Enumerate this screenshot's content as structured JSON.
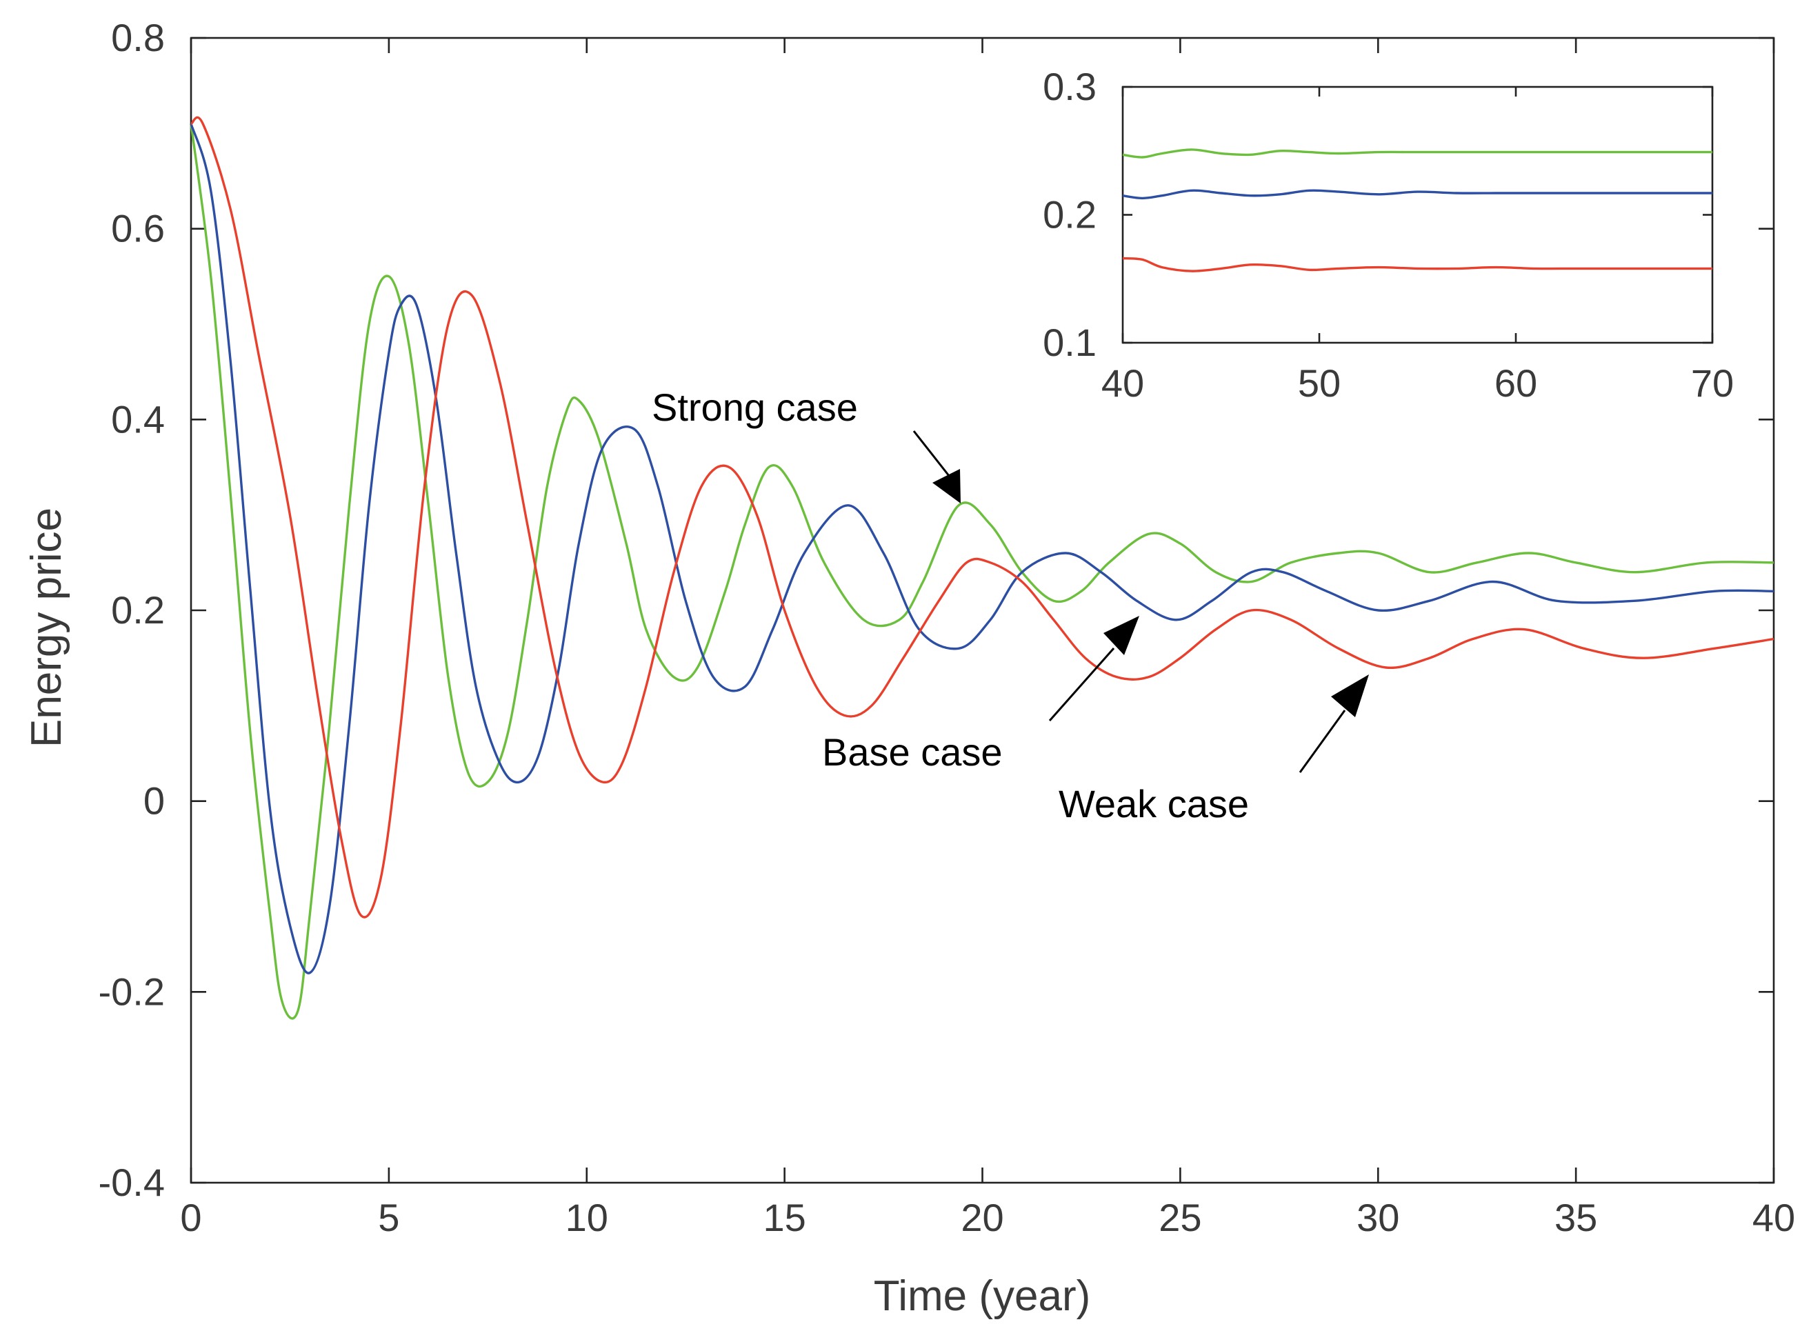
{
  "chart_data": [
    {
      "type": "line",
      "title": "",
      "xlabel": "Time (year)",
      "ylabel": "Energy price",
      "xlim": [
        0,
        40
      ],
      "ylim": [
        -0.4,
        0.8
      ],
      "xticks": [
        0,
        5,
        10,
        15,
        20,
        25,
        30,
        35,
        40
      ],
      "yticks": [
        -0.4,
        -0.2,
        0,
        0.2,
        0.4,
        0.6,
        0.8
      ],
      "xtick_labels": [
        "0",
        "5",
        "10",
        "15",
        "20",
        "25",
        "30",
        "35",
        "40"
      ],
      "ytick_labels": [
        "-0.4",
        "-0.2",
        "0",
        "0.2",
        "0.4",
        "0.6",
        "0.8"
      ],
      "grid": false,
      "series": [
        {
          "name": "Strong case",
          "color": "#6cbf3c",
          "x": [
            0,
            0.5,
            1,
            1.5,
            2,
            2.3,
            2.7,
            3.0,
            3.5,
            4,
            4.5,
            5.0,
            5.5,
            6,
            6.5,
            7.0,
            7.5,
            8,
            8.5,
            9,
            9.5,
            9.8,
            10.3,
            11,
            11.5,
            12.2,
            12.8,
            13.5,
            14,
            14.6,
            15.2,
            16,
            17,
            17.9,
            18.5,
            19.4,
            20.2,
            21,
            21.8,
            22.5,
            23.2,
            24.2,
            25,
            25.9,
            26.8,
            27.8,
            29,
            30,
            31.3,
            32.5,
            33.8,
            35,
            36.5,
            38.3,
            40
          ],
          "values": [
            0.71,
            0.55,
            0.32,
            0.07,
            -0.12,
            -0.21,
            -0.22,
            -0.12,
            0.08,
            0.31,
            0.5,
            0.55,
            0.48,
            0.31,
            0.13,
            0.03,
            0.02,
            0.07,
            0.19,
            0.33,
            0.41,
            0.42,
            0.38,
            0.27,
            0.18,
            0.13,
            0.14,
            0.22,
            0.29,
            0.35,
            0.33,
            0.25,
            0.19,
            0.19,
            0.23,
            0.31,
            0.29,
            0.24,
            0.21,
            0.22,
            0.25,
            0.28,
            0.27,
            0.24,
            0.23,
            0.25,
            0.26,
            0.26,
            0.24,
            0.25,
            0.26,
            0.25,
            0.24,
            0.25,
            0.25
          ]
        },
        {
          "name": "Base case",
          "color": "#2c4ea3",
          "x": [
            0,
            0.5,
            1,
            1.5,
            2,
            2.5,
            3.0,
            3.5,
            4,
            4.5,
            5.0,
            5.3,
            5.7,
            6.2,
            6.7,
            7.2,
            7.8,
            8.3,
            8.8,
            9.3,
            9.8,
            10.4,
            11.2,
            11.8,
            12.5,
            13.2,
            14,
            14.7,
            15.5,
            16.6,
            17.5,
            18.4,
            19.4,
            20.2,
            21.0,
            22.1,
            23.0,
            23.9,
            24.9,
            25.8,
            26.8,
            27.6,
            28.7,
            30.0,
            31.3,
            32.9,
            34.5,
            36.5,
            38.5,
            40
          ],
          "values": [
            0.71,
            0.64,
            0.46,
            0.22,
            -0.01,
            -0.13,
            -0.18,
            -0.11,
            0.08,
            0.31,
            0.47,
            0.52,
            0.52,
            0.42,
            0.26,
            0.12,
            0.04,
            0.02,
            0.05,
            0.14,
            0.27,
            0.37,
            0.39,
            0.33,
            0.21,
            0.13,
            0.12,
            0.18,
            0.26,
            0.31,
            0.26,
            0.18,
            0.16,
            0.19,
            0.24,
            0.26,
            0.24,
            0.21,
            0.19,
            0.21,
            0.24,
            0.24,
            0.22,
            0.2,
            0.21,
            0.23,
            0.21,
            0.21,
            0.22,
            0.22
          ]
        },
        {
          "name": "Weak case",
          "color": "#e8402c",
          "x": [
            0,
            0.3,
            1,
            1.7,
            2.5,
            3.2,
            3.8,
            4.3,
            4.8,
            5.3,
            5.9,
            6.5,
            7.1,
            7.8,
            8.5,
            9.2,
            9.8,
            10.4,
            10.9,
            11.5,
            12.2,
            12.9,
            13.6,
            14.3,
            15.0,
            15.8,
            16.5,
            17.2,
            18.0,
            18.9,
            19.6,
            20.2,
            21.0,
            21.8,
            22.6,
            23.4,
            24.2,
            25.0,
            25.9,
            26.8,
            27.8,
            29.0,
            30.2,
            31.3,
            32.4,
            33.7,
            35.2,
            36.7,
            38.5,
            40
          ],
          "values": [
            0.71,
            0.71,
            0.62,
            0.47,
            0.3,
            0.11,
            -0.04,
            -0.12,
            -0.08,
            0.08,
            0.33,
            0.5,
            0.53,
            0.44,
            0.29,
            0.14,
            0.05,
            0.02,
            0.04,
            0.12,
            0.24,
            0.33,
            0.35,
            0.3,
            0.2,
            0.12,
            0.09,
            0.1,
            0.15,
            0.21,
            0.25,
            0.25,
            0.23,
            0.19,
            0.15,
            0.13,
            0.13,
            0.15,
            0.18,
            0.2,
            0.19,
            0.16,
            0.14,
            0.15,
            0.17,
            0.18,
            0.16,
            0.15,
            0.16,
            0.17
          ]
        }
      ],
      "annotations": [
        {
          "text": "Strong case",
          "series": "Strong case",
          "point_x": 19.5,
          "point_y": 0.3
        },
        {
          "text": "Base case",
          "series": "Base case",
          "point_x": 24.3,
          "point_y": 0.2
        },
        {
          "text": "Weak case",
          "series": "Weak case",
          "point_x": 30.1,
          "point_y": 0.15
        }
      ]
    },
    {
      "type": "line",
      "title": "",
      "xlabel": "",
      "ylabel": "",
      "xlim": [
        40,
        70
      ],
      "ylim": [
        0.1,
        0.3
      ],
      "xticks": [
        40,
        50,
        60,
        70
      ],
      "yticks": [
        0.1,
        0.2,
        0.3
      ],
      "xtick_labels": [
        "40",
        "50",
        "60",
        "70"
      ],
      "ytick_labels": [
        "0.1",
        "0.2",
        "0.3"
      ],
      "grid": false,
      "series": [
        {
          "name": "Strong case",
          "color": "#6cbf3c",
          "x": [
            40,
            41,
            42,
            43.5,
            45,
            46.5,
            48,
            49.5,
            51,
            53,
            55,
            57,
            59,
            61,
            63,
            65,
            67,
            70
          ],
          "values": [
            0.247,
            0.245,
            0.248,
            0.251,
            0.248,
            0.247,
            0.25,
            0.249,
            0.248,
            0.249,
            0.249,
            0.249,
            0.249,
            0.249,
            0.249,
            0.249,
            0.249,
            0.249
          ],
          "stroke_rgb": "#6cbf3c"
        },
        {
          "name": "Base case",
          "color": "#2c4ea3",
          "x": [
            40,
            41,
            42,
            43.5,
            45,
            46.5,
            48,
            49.5,
            51,
            53,
            55,
            57,
            59,
            61,
            63,
            65,
            67,
            70
          ],
          "values": [
            0.215,
            0.213,
            0.215,
            0.219,
            0.217,
            0.215,
            0.216,
            0.219,
            0.218,
            0.216,
            0.218,
            0.217,
            0.217,
            0.217,
            0.217,
            0.217,
            0.217,
            0.217
          ]
        },
        {
          "name": "Weak case",
          "color": "#e8402c",
          "x": [
            40,
            41,
            42,
            43.5,
            45,
            46.5,
            48,
            49.5,
            51,
            53,
            55,
            57,
            59,
            61,
            63,
            65,
            67,
            70
          ],
          "values": [
            0.166,
            0.165,
            0.159,
            0.156,
            0.158,
            0.161,
            0.16,
            0.157,
            0.158,
            0.159,
            0.158,
            0.158,
            0.159,
            0.158,
            0.158,
            0.158,
            0.158,
            0.158
          ]
        }
      ]
    }
  ]
}
